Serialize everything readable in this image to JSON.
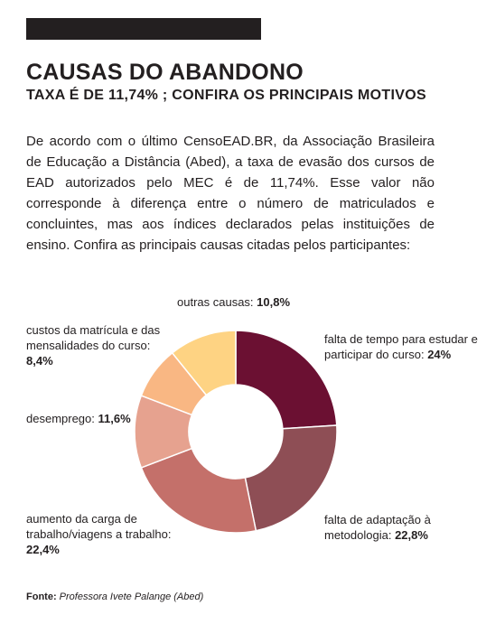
{
  "header": {
    "title": "CAUSAS DO ABANDONO",
    "subtitle": "TAXA É DE 11,74% ; CONFIRA OS PRINCIPAIS MOTIVOS"
  },
  "body_text": "De acordo com o último CensoEAD.BR, da Associação Brasileira de Educação a Distância (Abed), a taxa de evasão dos cursos de EAD autorizados pelo MEC é de 11,74%. Esse valor não corresponde à diferença entre o número de matriculados e concluintes, mas aos índices declarados pelas instituições de ensino. Confira as principais causas citadas pelos participantes:",
  "chart_data": {
    "type": "pie",
    "slices": [
      {
        "label": "falta de tempo para estudar e participar do curso:",
        "value": 24,
        "display": "24%",
        "color": "#6b1032"
      },
      {
        "label": "falta de adaptação à metodologia:",
        "value": 22.8,
        "display": "22,8%",
        "color": "#8e4e55"
      },
      {
        "label": "aumento da carga de trabalho/viagens a trabalho:",
        "value": 22.4,
        "display": "22,4%",
        "color": "#c4706a"
      },
      {
        "label": "desemprego:",
        "value": 11.6,
        "display": "11,6%",
        "color": "#e6a28f"
      },
      {
        "label": "custos da matrícula e das mensalidades do curso:",
        "value": 8.4,
        "display": "8,4%",
        "color": "#f9b783"
      },
      {
        "label": "outras causas:",
        "value": 10.8,
        "display": "10,8%",
        "color": "#fed383"
      }
    ]
  },
  "source": {
    "key": "Fonte:",
    "value": "Professora Ivete Palange (Abed)"
  }
}
